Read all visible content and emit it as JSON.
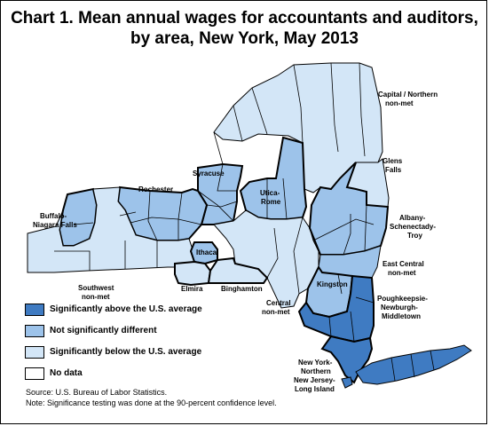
{
  "title": {
    "line1": "Chart 1. Mean annual wages for accountants and auditors,",
    "line2": "by area, New York, May 2013"
  },
  "colors": {
    "above": "#3f7bc2",
    "not_significant": "#9dc3ea",
    "below": "#d3e6f7",
    "no_data": "#ffffff",
    "border": "#000000"
  },
  "areas": [
    {
      "name": "Capital / Northern non-met",
      "category": "below"
    },
    {
      "name": "Glens Falls",
      "category": "below"
    },
    {
      "name": "Syracuse",
      "category": "not_significant"
    },
    {
      "name": "Utica-Rome",
      "category": "not_significant"
    },
    {
      "name": "Rochester",
      "category": "not_significant"
    },
    {
      "name": "Buffalo-Niagara Falls",
      "category": "not_significant"
    },
    {
      "name": "Albany-Schenectady-Troy",
      "category": "not_significant"
    },
    {
      "name": "Ithaca",
      "category": "not_significant"
    },
    {
      "name": "Southwest non-met",
      "category": "below"
    },
    {
      "name": "Elmira",
      "category": "below"
    },
    {
      "name": "Binghamton",
      "category": "below"
    },
    {
      "name": "East Central non-met",
      "category": "not_significant"
    },
    {
      "name": "Kingston",
      "category": "not_significant"
    },
    {
      "name": "Central non-met",
      "category": "below"
    },
    {
      "name": "Poughkeepsie-Newburgh-Middletown",
      "category": "above"
    },
    {
      "name": "New York-Northern New Jersey-Long Island",
      "category": "above"
    }
  ],
  "labels": {
    "capital_1": "Capital / Northern",
    "capital_2": "non-met",
    "glens_1": "Glens",
    "glens_2": "Falls",
    "syracuse": "Syracuse",
    "utica_1": "Utica-",
    "utica_2": "Rome",
    "rochester": "Rochester",
    "buffalo_1": "Buffalo-",
    "buffalo_2": "Niagara Falls",
    "albany_1": "Albany-",
    "albany_2": "Schenectady-",
    "albany_3": "Troy",
    "ithaca": "Ithaca",
    "east_central_1": "East Central",
    "east_central_2": "non-met",
    "southwest_1": "Southwest",
    "southwest_2": "non-met",
    "elmira": "Elmira",
    "binghamton": "Binghamton",
    "kingston": "Kingston",
    "central_1": "Central",
    "central_2": "non-met",
    "pough_1": "Poughkeepsie-",
    "pough_2": "Newburgh-",
    "pough_3": "Middletown",
    "nyc_1": "New York-",
    "nyc_2": "Northern",
    "nyc_3": "New Jersey-",
    "nyc_4": "Long Island"
  },
  "legend": [
    {
      "key": "above",
      "label": "Significantly above the U.S. average"
    },
    {
      "key": "not_significant",
      "label": "Not significantly different"
    },
    {
      "key": "below",
      "label": "Significantly below the U.S. average"
    },
    {
      "key": "no_data",
      "label": "No data"
    }
  ],
  "source": "Source: U.S. Bureau of Labor Statistics.",
  "note": "Note: Significance testing was done at the 90-percent confidence level."
}
